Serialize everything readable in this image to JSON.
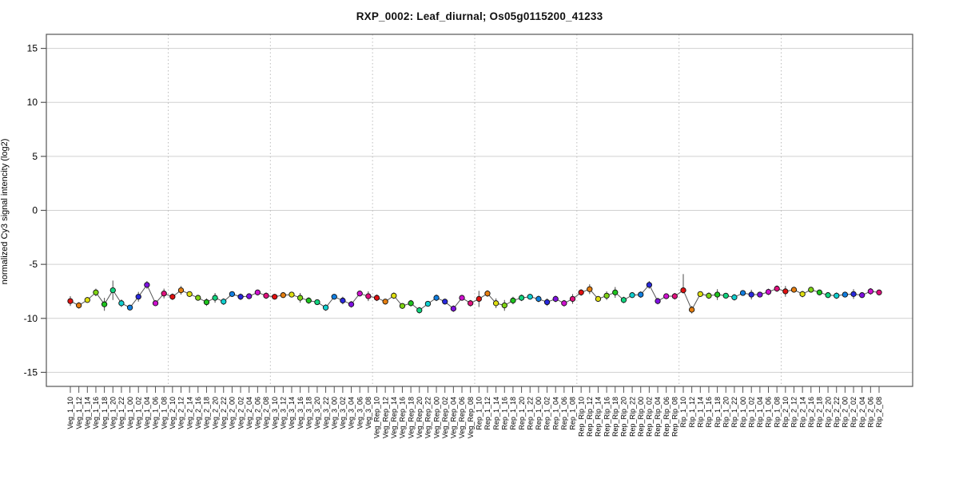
{
  "page": {
    "background": "#ffffff"
  },
  "chart_data": {
    "type": "line",
    "title": "RXP_0002: Leaf_diurnal; Os05g0115200_41233",
    "xlabel": "",
    "ylabel": "normalized Cy3 signal intencity (log2)",
    "yticks": [
      15,
      10,
      5,
      0,
      -5,
      -10,
      -15
    ],
    "ylim": [
      -16.3,
      16.3
    ],
    "grid": "horizontal solid lines at y ticks; dotted vertical separators between sample groups",
    "legend": "none",
    "groups": [
      "Veg_1",
      "Veg_2",
      "Veg_3",
      "Veg_Rep",
      "Rep_1",
      "Rep_Rip",
      "Rip_1",
      "Rip_2"
    ],
    "hours": [
      "10",
      "12",
      "14",
      "16",
      "18",
      "20",
      "22",
      "00",
      "02",
      "04",
      "06",
      "08"
    ],
    "categories": [
      "Veg_1_10",
      "Veg_1_12",
      "Veg_1_14",
      "Veg_1_16",
      "Veg_1_18",
      "Veg_1_20",
      "Veg_1_22",
      "Veg_1_00",
      "Veg_1_02",
      "Veg_1_04",
      "Veg_1_06",
      "Veg_1_08",
      "Veg_2_10",
      "Veg_2_12",
      "Veg_2_14",
      "Veg_2_16",
      "Veg_2_18",
      "Veg_2_20",
      "Veg_2_22",
      "Veg_2_00",
      "Veg_2_02",
      "Veg_2_04",
      "Veg_2_06",
      "Veg_2_08",
      "Veg_3_10",
      "Veg_3_12",
      "Veg_3_14",
      "Veg_3_16",
      "Veg_3_18",
      "Veg_3_20",
      "Veg_3_22",
      "Veg_3_00",
      "Veg_3_02",
      "Veg_3_04",
      "Veg_3_06",
      "Veg_3_08",
      "Veg_Rep_10",
      "Veg_Rep_12",
      "Veg_Rep_14",
      "Veg_Rep_16",
      "Veg_Rep_18",
      "Veg_Rep_20",
      "Veg_Rep_22",
      "Veg_Rep_00",
      "Veg_Rep_02",
      "Veg_Rep_04",
      "Veg_Rep_06",
      "Veg_Rep_08",
      "Rep_1_10",
      "Rep_1_12",
      "Rep_1_14",
      "Rep_1_16",
      "Rep_1_18",
      "Rep_1_20",
      "Rep_1_22",
      "Rep_1_00",
      "Rep_1_02",
      "Rep_1_04",
      "Rep_1_06",
      "Rep_1_08",
      "Rep_Rip_10",
      "Rep_Rip_12",
      "Rep_Rip_14",
      "Rep_Rip_16",
      "Rep_Rip_18",
      "Rep_Rip_20",
      "Rep_Rip_22",
      "Rep_Rip_00",
      "Rep_Rip_02",
      "Rep_Rip_04",
      "Rep_Rip_06",
      "Rep_Rip_08",
      "Rip_1_10",
      "Rip_1_12",
      "Rip_1_14",
      "Rip_1_16",
      "Rip_1_18",
      "Rip_1_20",
      "Rip_1_22",
      "Rip_1_00",
      "Rip_1_02",
      "Rip_1_04",
      "Rip_1_06",
      "Rip_1_08",
      "Rip_2_10",
      "Rip_2_12",
      "Rip_2_14",
      "Rip_2_16",
      "Rip_2_18",
      "Rip_2_20",
      "Rip_2_22",
      "Rip_2_00",
      "Rip_2_02",
      "Rip_2_04",
      "Rip_2_06",
      "Rip_2_08"
    ],
    "values": [
      -8.4,
      -8.8,
      -8.3,
      -7.6,
      -8.7,
      -7.4,
      -8.6,
      -9.0,
      -8.0,
      -6.9,
      -8.6,
      -7.7,
      -8.0,
      -7.4,
      -7.75,
      -8.1,
      -8.5,
      -8.1,
      -8.45,
      -7.75,
      -8.0,
      -7.95,
      -7.6,
      -7.9,
      -8.0,
      -7.85,
      -7.8,
      -8.1,
      -8.35,
      -8.5,
      -9.0,
      -8.0,
      -8.35,
      -8.7,
      -7.7,
      -7.95,
      -8.1,
      -8.45,
      -7.9,
      -8.85,
      -8.6,
      -9.25,
      -8.65,
      -8.1,
      -8.45,
      -9.1,
      -8.1,
      -8.6,
      -8.2,
      -7.7,
      -8.6,
      -8.8,
      -8.35,
      -8.1,
      -8.0,
      -8.2,
      -8.5,
      -8.2,
      -8.6,
      -8.2,
      -7.6,
      -7.3,
      -8.2,
      -7.9,
      -7.6,
      -8.3,
      -7.85,
      -7.8,
      -6.9,
      -8.4,
      -7.95,
      -7.95,
      -7.4,
      -9.2,
      -7.75,
      -7.9,
      -7.8,
      -7.9,
      -8.05,
      -7.65,
      -7.8,
      -7.8,
      -7.55,
      -7.25,
      -7.5,
      -7.35,
      -7.75,
      -7.35,
      -7.6,
      -7.85,
      -7.9,
      -7.8,
      -7.75,
      -7.85,
      -7.5,
      -7.6
    ],
    "errors": [
      0.45,
      0.3,
      0.25,
      0.35,
      0.6,
      0.9,
      0.35,
      0.2,
      0.45,
      0.35,
      0.2,
      0.45,
      0.3,
      0.4,
      0.2,
      0.25,
      0.35,
      0.45,
      0.3,
      0.25,
      0.3,
      0.25,
      0.2,
      0.3,
      0.25,
      0.2,
      0.25,
      0.45,
      0.3,
      0.25,
      0.3,
      0.25,
      0.35,
      0.3,
      0.25,
      0.45,
      0.3,
      0.25,
      0.3,
      0.25,
      0.3,
      0.3,
      0.25,
      0.3,
      0.25,
      0.3,
      0.25,
      0.3,
      0.75,
      0.3,
      0.45,
      0.5,
      0.35,
      0.3,
      0.25,
      0.3,
      0.35,
      0.3,
      0.3,
      0.45,
      0.3,
      0.45,
      0.25,
      0.4,
      0.5,
      0.3,
      0.25,
      0.3,
      0.35,
      0.3,
      0.25,
      0.3,
      0.3,
      0.35,
      0.25,
      0.3,
      0.5,
      0.25,
      0.3,
      0.25,
      0.45,
      0.25,
      0.3,
      0.3,
      0.5,
      0.25,
      0.3,
      0.25,
      0.2,
      0.25,
      0.3,
      0.25,
      0.45,
      0.25,
      0.3,
      0.25
    ],
    "error_overrides": {
      "72": {
        "up": 1.5,
        "down": 0.3
      }
    },
    "hour_colors": [
      "#e01010",
      "#e57e10",
      "#dede10",
      "#7ed314",
      "#1ec41e",
      "#10d47e",
      "#10cfcf",
      "#107ee0",
      "#2828dc",
      "#7e10e0",
      "#cf10cf",
      "#e0107e"
    ],
    "colors": {
      "box": "#555555",
      "grid": "#d0d0d0",
      "separator": "#bdbdbd",
      "line": "#555555",
      "error_bar": "#5a5a5a",
      "point_outline": "#111111",
      "text": "#000000",
      "title": "#111111"
    }
  }
}
